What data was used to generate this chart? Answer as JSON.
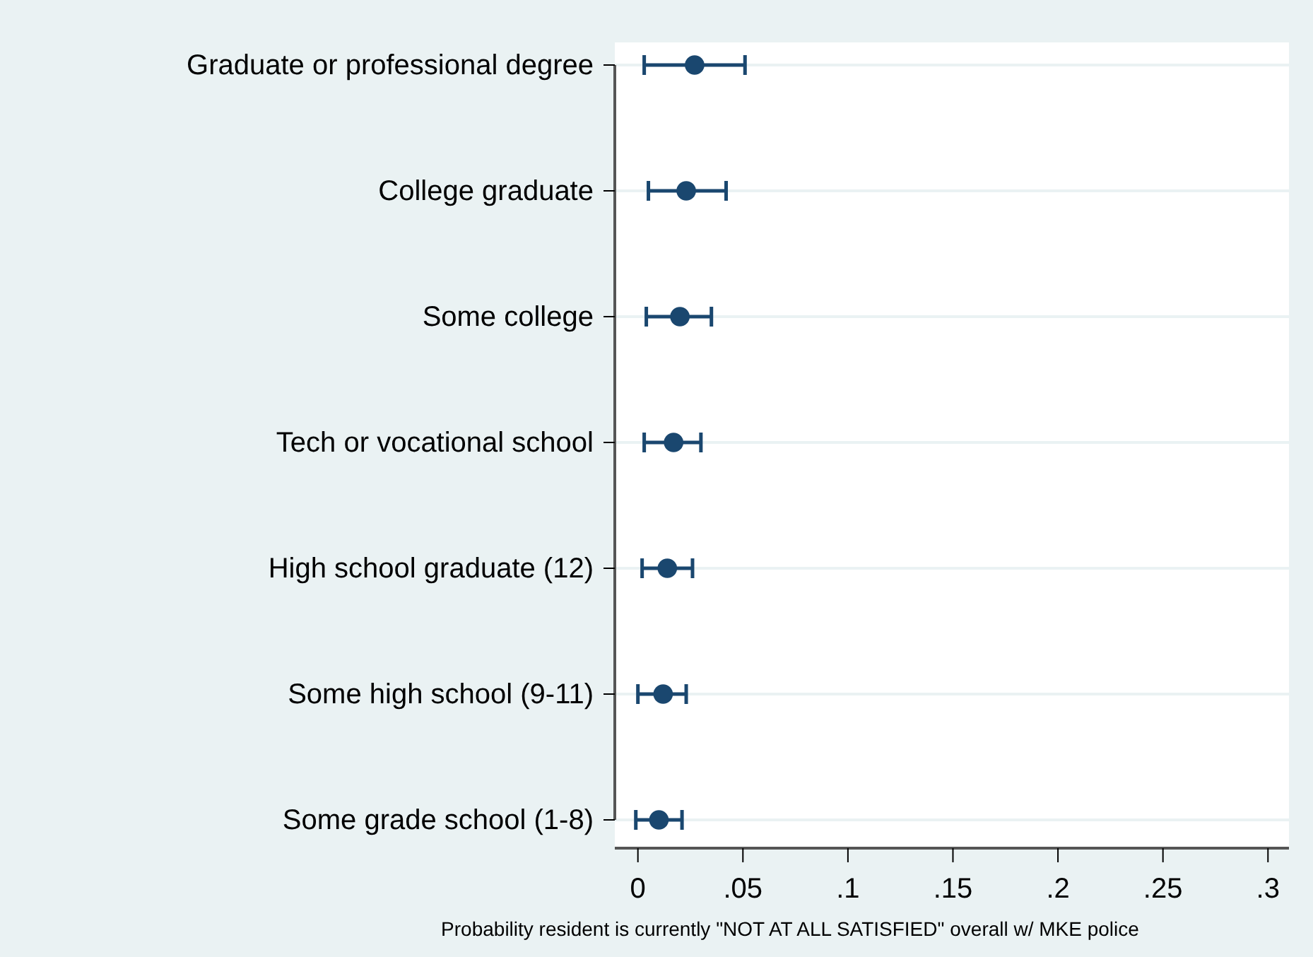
{
  "chart_data": {
    "type": "scatter",
    "orientation": "horizontal",
    "xlabel": "Probability resident is currently \"NOT AT ALL SATISFIED\" overall w/ MKE police",
    "categories": [
      "Graduate or professional degree",
      "College graduate",
      "Some college",
      "Tech or vocational school",
      "High school graduate (12)",
      "Some high school (9-11)",
      "Some grade school (1-8)"
    ],
    "series": [
      {
        "color": "#1a476f",
        "values": [
          0.027,
          0.023,
          0.02,
          0.017,
          0.014,
          0.012,
          0.01
        ],
        "errors": [
          [
            0.003,
            0.051
          ],
          [
            0.005,
            0.042
          ],
          [
            0.004,
            0.035
          ],
          [
            0.003,
            0.03
          ],
          [
            0.002,
            0.026
          ],
          [
            0.0,
            0.023
          ],
          [
            -0.001,
            0.021
          ]
        ]
      }
    ],
    "xlim": [
      -0.011,
      0.31
    ],
    "xticks": [
      0,
      {
        "value": 0.05,
        "label": ".05"
      },
      {
        "value": 0.1,
        "label": ".1"
      },
      {
        "value": 0.15,
        "label": ".15"
      },
      {
        "value": 0.2,
        "label": ".2"
      },
      {
        "value": 0.25,
        "label": ".25"
      },
      {
        "value": 0.3,
        "label": ".3"
      }
    ],
    "grid": "y",
    "marker": "circle"
  }
}
